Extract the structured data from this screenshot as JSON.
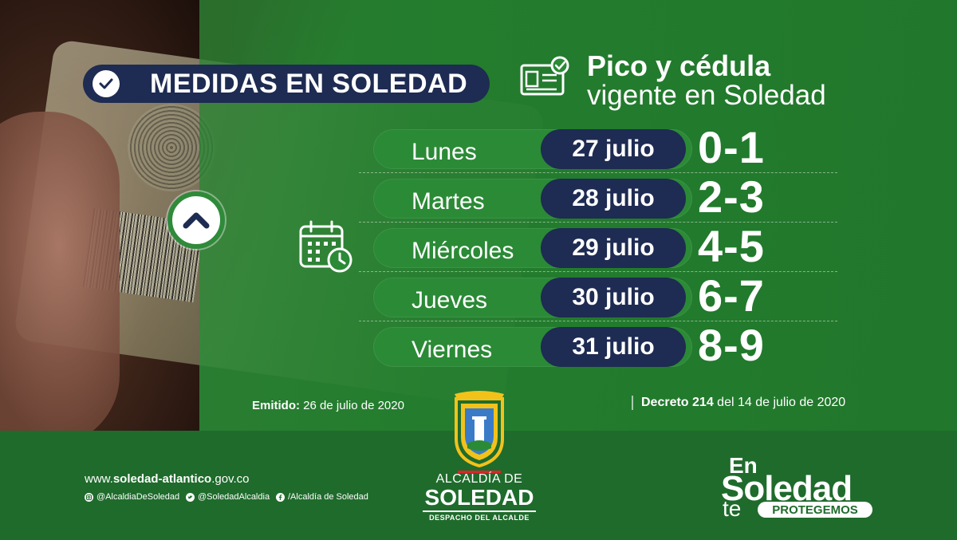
{
  "header": {
    "badge_title": "MEDIDAS EN SOLEDAD",
    "title_main": "Pico y cédula",
    "title_sub": "vigente en Soledad"
  },
  "schedule": [
    {
      "day": "Lunes",
      "date": "27 julio",
      "digits": "0-1"
    },
    {
      "day": "Martes",
      "date": "28 julio",
      "digits": "2-3"
    },
    {
      "day": "Miércoles",
      "date": "29 julio",
      "digits": "4-5"
    },
    {
      "day": "Jueves",
      "date": "30 julio",
      "digits": "6-7"
    },
    {
      "day": "Viernes",
      "date": "31 julio",
      "digits": "8-9"
    }
  ],
  "footnotes": {
    "emitido_label": "Emitido:",
    "emitido_value": "26 de julio de 2020",
    "decreto_label": "Decreto 214",
    "decreto_value": "del 14 de julio de 2020"
  },
  "footer": {
    "website_prefix": "www.",
    "website_bold": "soledad-atlantico",
    "website_suffix": ".gov.co",
    "instagram": "@AlcaldiaDeSoledad",
    "twitter": "@SoledadAlcaldia",
    "facebook": "/Alcaldía de Soledad",
    "alcaldia_line1": "ALCALDÍA DE",
    "alcaldia_line2": "SOLEDAD",
    "alcaldia_line3": "DESPACHO DEL ALCALDE",
    "slogan_en": "En",
    "slogan_soledad": "Soledad",
    "slogan_te": "te",
    "slogan_protegemos": "PROTEGEMOS"
  },
  "colors": {
    "navy": "#1e2b52",
    "green": "#2b8a36",
    "footer_green": "#1f6b2c"
  },
  "icons": [
    "check-icon",
    "id-card-icon",
    "chevron-up-icon",
    "calendar-icon",
    "instagram-icon",
    "twitter-icon",
    "facebook-icon"
  ]
}
